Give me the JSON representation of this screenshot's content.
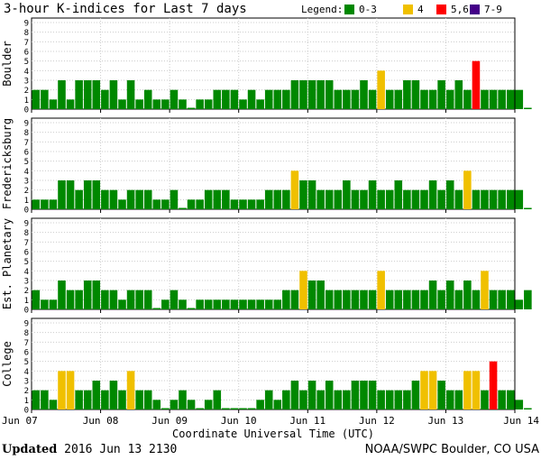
{
  "chart_data": {
    "type": "bar",
    "title": "3-hour K-indices for Last 7 days",
    "legend_title": "Legend:",
    "legend": [
      {
        "label": "0-3",
        "color": "#008800"
      },
      {
        "label": "4",
        "color": "#f0c000"
      },
      {
        "label": "5,6",
        "color": "#ff0000"
      },
      {
        "label": "7-9",
        "color": "#440088"
      }
    ],
    "legend_placement": "top-right",
    "ylim": [
      0,
      9
    ],
    "yticks": [
      "0",
      "1",
      "2",
      "3",
      "4",
      "5",
      "6",
      "7",
      "8",
      "9"
    ],
    "xlabel": "Coordinate Universal Time (UTC)",
    "xticks": [
      "Jun 07",
      "Jun 08",
      "Jun 09",
      "Jun 10",
      "Jun 11",
      "Jun 12",
      "Jun 13",
      "Jun 14"
    ],
    "intervals_per_day": 8,
    "grid": true,
    "panels": [
      {
        "name": "Boulder",
        "values": [
          2,
          2,
          1,
          3,
          1,
          3,
          3,
          3,
          2,
          3,
          1,
          3,
          1,
          2,
          1,
          1,
          2,
          1,
          0,
          1,
          1,
          2,
          2,
          2,
          1,
          2,
          1,
          2,
          2,
          2,
          3,
          3,
          3,
          3,
          3,
          2,
          2,
          2,
          3,
          2,
          4,
          2,
          2,
          3,
          3,
          2,
          2,
          3,
          2,
          3,
          2,
          5,
          2,
          2,
          2,
          2,
          2,
          0
        ]
      },
      {
        "name": "Fredericksburg",
        "values": [
          1,
          1,
          1,
          3,
          3,
          2,
          3,
          3,
          2,
          2,
          1,
          2,
          2,
          2,
          1,
          1,
          2,
          0,
          1,
          1,
          2,
          2,
          2,
          1,
          1,
          1,
          1,
          2,
          2,
          2,
          4,
          3,
          3,
          2,
          2,
          2,
          3,
          2,
          2,
          3,
          2,
          2,
          3,
          2,
          2,
          2,
          3,
          2,
          3,
          2,
          4,
          2,
          2,
          2,
          2,
          2,
          2,
          0
        ]
      },
      {
        "name": "Est. Planetary",
        "values": [
          2,
          1,
          1,
          3,
          2,
          2,
          3,
          3,
          2,
          2,
          1,
          2,
          2,
          2,
          0,
          1,
          2,
          1,
          0,
          1,
          1,
          1,
          1,
          1,
          1,
          1,
          1,
          1,
          1,
          2,
          2,
          4,
          3,
          3,
          2,
          2,
          2,
          2,
          2,
          2,
          4,
          2,
          2,
          2,
          2,
          2,
          3,
          2,
          3,
          2,
          3,
          2,
          4,
          2,
          2,
          2,
          1,
          2
        ]
      },
      {
        "name": "College",
        "values": [
          2,
          2,
          1,
          4,
          4,
          2,
          2,
          3,
          2,
          3,
          2,
          4,
          2,
          2,
          1,
          0,
          1,
          2,
          1,
          0,
          1,
          2,
          0,
          0,
          0,
          0,
          1,
          2,
          1,
          2,
          3,
          2,
          3,
          2,
          3,
          2,
          2,
          3,
          3,
          3,
          2,
          2,
          2,
          2,
          3,
          4,
          4,
          3,
          2,
          2,
          4,
          4,
          2,
          5,
          2,
          2,
          1,
          0
        ]
      }
    ]
  },
  "footer": {
    "updated_label": "Updated",
    "updated_value": "2016 Jun 13 2130",
    "source": "NOAA/SWPC Boulder, CO USA"
  }
}
